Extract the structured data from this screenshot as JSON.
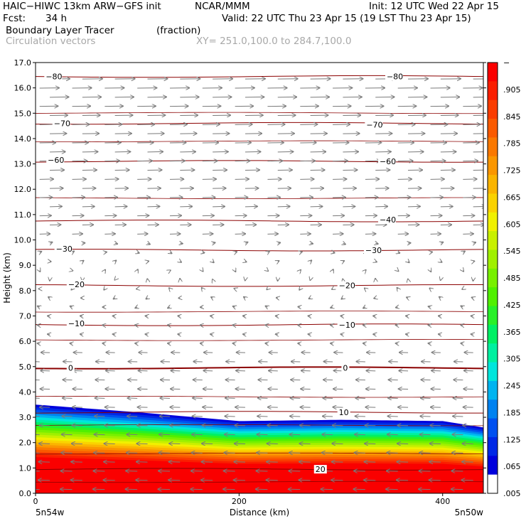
{
  "header": {
    "model": "HAIC−HIWC 13km ARW−GFS init",
    "org": "NCAR/MMM",
    "init": "Init: 12 UTC Wed 22 Apr 15",
    "fcst_label": "Fcst:",
    "fcst_value": "34 h",
    "valid": "Valid: 22 UTC Thu 23 Apr 15 (19 LST Thu 23 Apr 15)",
    "field": "Boundary Layer Tracer",
    "units": "(fraction)",
    "vectors": "Circulation vectors",
    "xy": "XY= 251.0,100.0 to 284.7,100.0"
  },
  "chart_data": {
    "type": "heatmap",
    "title": "Boundary Layer Tracer (fraction)",
    "xlabel": "Distance (km)",
    "ylabel": "Height (km)",
    "xlim": [
      0,
      440
    ],
    "ylim": [
      0,
      17
    ],
    "x_ticks": [
      "0",
      "200",
      "400"
    ],
    "x_tick_values": [
      0,
      200,
      400
    ],
    "y_ticks": [
      "0.0",
      "1.0",
      "2.0",
      "3.0",
      "4.0",
      "5.0",
      "6.0",
      "7.0",
      "8.0",
      "9.0",
      "10.0",
      "11.0",
      "12.0",
      "13.0",
      "14.0",
      "15.0",
      "16.0",
      "17.0"
    ],
    "x_endpoints": {
      "left": "5n54w",
      "right": "5n50w"
    },
    "tracer_top_km": {
      "x": [
        0,
        100,
        200,
        300,
        400,
        440
      ],
      "y": [
        3.5,
        3.2,
        2.85,
        2.9,
        2.85,
        2.6
      ]
    },
    "colorbar": {
      "labels": [
        "−",
        ".905",
        ".845",
        ".785",
        ".725",
        ".665",
        ".605",
        ".545",
        ".485",
        ".425",
        ".365",
        ".305",
        ".245",
        ".185",
        ".125",
        ".065",
        ".005"
      ],
      "colors": [
        "#fa0000",
        "#fa1e00",
        "#fa3c00",
        "#fa5a00",
        "#fa7800",
        "#fa9600",
        "#fab400",
        "#fad200",
        "#f0f000",
        "#c8f000",
        "#a0f000",
        "#78f000",
        "#50f000",
        "#28f028",
        "#00f064",
        "#00f0a0",
        "#00e6dc",
        "#00b4f0",
        "#0082f0",
        "#0050f0",
        "#0028e6",
        "#0000dc",
        "#ffffff"
      ]
    },
    "temperature_contours": [
      {
        "label": "−80",
        "km": 16.45
      },
      {
        "label": "−70",
        "km": 14.6
      },
      {
        "label": "−60",
        "km": 13.1
      },
      {
        "label": "−40",
        "km": 10.75
      },
      {
        "label": "−30",
        "km": 9.6
      },
      {
        "label": "−20",
        "km": 8.2
      },
      {
        "label": "−10",
        "km": 6.65
      },
      {
        "label": "0",
        "km": 4.95
      },
      {
        "label": "10",
        "km": 3.2
      },
      {
        "label": "20",
        "km": 0.95
      }
    ],
    "contour_labels": [
      {
        "text": "−80",
        "x": 10,
        "km": 16.45
      },
      {
        "text": "−80",
        "x": 345,
        "km": 16.45
      },
      {
        "text": "−70",
        "x": 18,
        "km": 14.6
      },
      {
        "text": "−70",
        "x": 325,
        "km": 14.55
      },
      {
        "text": "−60",
        "x": 12,
        "km": 13.15
      },
      {
        "text": "−60",
        "x": 338,
        "km": 13.1
      },
      {
        "text": "−40",
        "x": 338,
        "km": 10.8
      },
      {
        "text": "−30",
        "x": 20,
        "km": 9.65
      },
      {
        "text": "−30",
        "x": 324,
        "km": 9.6
      },
      {
        "text": "−20",
        "x": 32,
        "km": 8.25
      },
      {
        "text": "−20",
        "x": 298,
        "km": 8.2
      },
      {
        "text": "−10",
        "x": 32,
        "km": 6.7
      },
      {
        "text": "−10",
        "x": 298,
        "km": 6.65
      },
      {
        "text": "0",
        "x": 32,
        "km": 4.95
      },
      {
        "text": "0",
        "x": 302,
        "km": 4.95
      },
      {
        "text": "10",
        "x": 298,
        "km": 3.2
      },
      {
        "text": "20",
        "x": 275,
        "km": 0.95
      }
    ],
    "wind_note": "westerly vectors aloft (>10 km), weak flow 7-10 km, easterly vectors below 6 km"
  }
}
